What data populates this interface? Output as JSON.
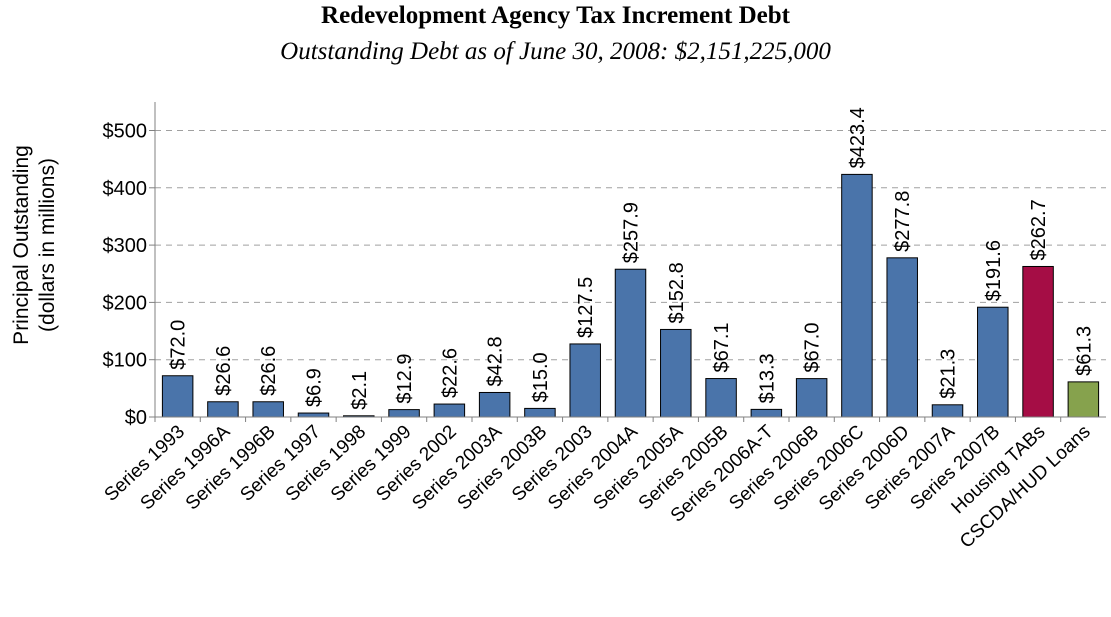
{
  "chart_data": {
    "type": "bar",
    "title": "Redevelopment Agency Tax Increment Debt",
    "subtitle": "Outstanding Debt as of June 30, 2008:  $2,151,225,000",
    "ylabel_line1": "Principal Outstanding",
    "ylabel_line2": "(dollars in millions)",
    "xlabel": "",
    "ylim": [
      0,
      550
    ],
    "yticks": [
      0,
      100,
      200,
      300,
      400,
      500
    ],
    "ytick_labels": [
      "$0",
      "$100",
      "$200",
      "$300",
      "$400",
      "$500"
    ],
    "grid": true,
    "categories": [
      "Series 1993",
      "Series 1996A",
      "Series 1996B",
      "Series 1997",
      "Series 1998",
      "Series 1999",
      "Series 2002",
      "Series 2003A",
      "Series 2003B",
      "Series 2003",
      "Series 2004A",
      "Series 2005A",
      "Series 2005B",
      "Series 2006A-T",
      "Series 2006B",
      "Series 2006C",
      "Series 2006D",
      "Series 2007A",
      "Series 2007B",
      "Housing TABs",
      "CSCDA/HUD Loans"
    ],
    "values": [
      72.0,
      26.6,
      26.6,
      6.9,
      2.1,
      12.9,
      22.6,
      42.8,
      15.0,
      127.5,
      257.9,
      152.8,
      67.1,
      13.3,
      67.0,
      423.4,
      277.8,
      21.3,
      191.6,
      262.7,
      61.3
    ],
    "data_labels": [
      "$72.0",
      "$26.6",
      "$26.6",
      "$6.9",
      "$2.1",
      "$12.9",
      "$22.6",
      "$42.8",
      "$15.0",
      "$127.5",
      "$257.9",
      "$152.8",
      "$67.1",
      "$13.3",
      "$67.0",
      "$423.4",
      "$277.8",
      "$21.3",
      "$191.6",
      "$262.7",
      "$61.3"
    ],
    "colors": {
      "default": "#4a74aa",
      "Housing TABs": "#a50d45",
      "CSCDA/HUD Loans": "#86a24d",
      "grid": "#a0a0a0",
      "axis": "#808080"
    }
  }
}
